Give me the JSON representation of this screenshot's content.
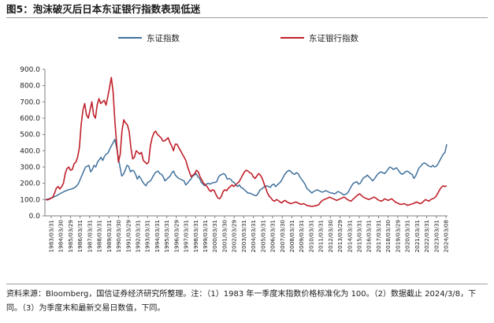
{
  "title": "图5：泡沫破灭后日本东证银行指数表现低迷",
  "note": "资料来源：Bloomberg，国信证券经济研究所整理。注：（1）1983 年一季度末指数价格标准化为 100。（2）数据截止 2024/3/8，下同。（3）为季度末和最新交易日数值，下同。",
  "chart_data": {
    "type": "line",
    "title": "图5：泡沫破灭后日本东证银行指数表现低迷",
    "xlabel": "",
    "ylabel": "",
    "ylim": [
      0,
      900
    ],
    "yticks": [
      0,
      100,
      200,
      300,
      400,
      500,
      600,
      700,
      800,
      900
    ],
    "ytick_labels": [
      "0.0",
      "100.0",
      "200.0",
      "300.0",
      "400.0",
      "500.0",
      "600.0",
      "700.0",
      "800.0",
      "900.0"
    ],
    "grid": false,
    "legend_position": "top",
    "x_tick_labels": [
      "1983/03/31",
      "1984/03/30",
      "1985/03/29",
      "1986/03/31",
      "1987/03/31",
      "1988/03/31",
      "1989/03/31",
      "1990/03/30",
      "1991/03/29",
      "1992/03/31",
      "1993/03/31",
      "1994/03/31",
      "1995/03/31",
      "1996/03/29",
      "1997/03/31",
      "1998/03/31",
      "1999/03/31",
      "2000/03/31",
      "2001/03/30",
      "2002/03/29",
      "2003/03/31",
      "2004/03/31",
      "2005/03/31",
      "2006/03/31",
      "2007/03/30",
      "2008/03/31",
      "2009/03/31",
      "2010/03/31",
      "2011/03/31",
      "2012/03/30",
      "2013/03/29",
      "2014/03/31",
      "2015/03/31",
      "2016/03/31",
      "2017/03/31",
      "2018/03/30",
      "2019/03/29",
      "2020/03/31",
      "2021/03/31",
      "2022/03/31",
      "2023/03/31",
      "2024/03/08"
    ],
    "series": [
      {
        "name": "东证指数",
        "color": "#41719c",
        "values": [
          100,
          102,
          105,
          110,
          112,
          118,
          122,
          128,
          135,
          140,
          145,
          152,
          155,
          160,
          162,
          165,
          170,
          175,
          185,
          200,
          225,
          250,
          275,
          300,
          305,
          310,
          270,
          285,
          310,
          300,
          330,
          345,
          360,
          340,
          365,
          380,
          385,
          410,
          430,
          450,
          470,
          420,
          360,
          300,
          245,
          255,
          280,
          310,
          305,
          270,
          280,
          275,
          255,
          225,
          245,
          230,
          210,
          195,
          185,
          205,
          210,
          220,
          240,
          260,
          270,
          275,
          260,
          255,
          240,
          215,
          225,
          235,
          245,
          265,
          275,
          250,
          240,
          230,
          225,
          220,
          215,
          190,
          200,
          215,
          225,
          245,
          250,
          260,
          240,
          230,
          205,
          195,
          185,
          195,
          200,
          195,
          200,
          205,
          205,
          210,
          240,
          250,
          255,
          260,
          250,
          225,
          230,
          225,
          210,
          205,
          190,
          180,
          190,
          175,
          170,
          160,
          150,
          140,
          140,
          135,
          130,
          125,
          125,
          140,
          160,
          165,
          175,
          180,
          185,
          180,
          175,
          190,
          195,
          180,
          190,
          200,
          210,
          230,
          250,
          265,
          275,
          280,
          270,
          260,
          255,
          265,
          260,
          240,
          225,
          210,
          195,
          170,
          160,
          150,
          140,
          150,
          155,
          160,
          155,
          150,
          145,
          150,
          155,
          150,
          145,
          140,
          140,
          135,
          140,
          150,
          145,
          140,
          130,
          130,
          135,
          145,
          165,
          185,
          200,
          205,
          210,
          195,
          200,
          220,
          235,
          240,
          250,
          240,
          230,
          215,
          225,
          240,
          255,
          265,
          270,
          265,
          260,
          270,
          285,
          300,
          295,
          285,
          290,
          295,
          280,
          265,
          255,
          260,
          270,
          275,
          270,
          260,
          255,
          230,
          245,
          270,
          295,
          305,
          320,
          325,
          320,
          310,
          305,
          300,
          310,
          300,
          305,
          320,
          340,
          360,
          380,
          390,
          440
        ]
      },
      {
        "name": "东证银行指数",
        "color": "#c0202a",
        "values": [
          100,
          98,
          102,
          108,
          115,
          140,
          170,
          180,
          165,
          180,
          200,
          260,
          290,
          300,
          280,
          285,
          320,
          330,
          360,
          420,
          560,
          650,
          690,
          620,
          600,
          650,
          700,
          620,
          600,
          680,
          720,
          690,
          700,
          710,
          680,
          730,
          790,
          850,
          760,
          580,
          440,
          330,
          380,
          520,
          590,
          570,
          560,
          520,
          420,
          350,
          360,
          400,
          390,
          380,
          390,
          340,
          330,
          320,
          330,
          430,
          480,
          510,
          520,
          500,
          490,
          480,
          460,
          460,
          470,
          480,
          450,
          430,
          400,
          440,
          440,
          420,
          400,
          380,
          360,
          340,
          300,
          270,
          240,
          250,
          260,
          280,
          270,
          240,
          220,
          200,
          190,
          180,
          160,
          150,
          160,
          155,
          130,
          110,
          105,
          120,
          150,
          160,
          155,
          170,
          180,
          190,
          180,
          190,
          200,
          210,
          230,
          250,
          270,
          280,
          275,
          265,
          260,
          240,
          230,
          245,
          260,
          250,
          230,
          200,
          170,
          140,
          120,
          110,
          95,
          90,
          100,
          95,
          85,
          80,
          90,
          95,
          85,
          80,
          75,
          78,
          82,
          85,
          80,
          75,
          70,
          75,
          72,
          65,
          62,
          60,
          58,
          60,
          62,
          65,
          70,
          85,
          95,
          100,
          105,
          110,
          115,
          110,
          105,
          100,
          95,
          100,
          105,
          110,
          115,
          110,
          100,
          95,
          90,
          100,
          110,
          120,
          130,
          135,
          125,
          115,
          110,
          105,
          100,
          105,
          110,
          115,
          110,
          100,
          95,
          90,
          95,
          105,
          100,
          95,
          100,
          105,
          95,
          85,
          80,
          75,
          70,
          72,
          75,
          70,
          65,
          68,
          72,
          75,
          80,
          85,
          80,
          75,
          80,
          90,
          100,
          95,
          90,
          100,
          105,
          110,
          120,
          140,
          160,
          175,
          185,
          180,
          185
        ]
      }
    ]
  }
}
